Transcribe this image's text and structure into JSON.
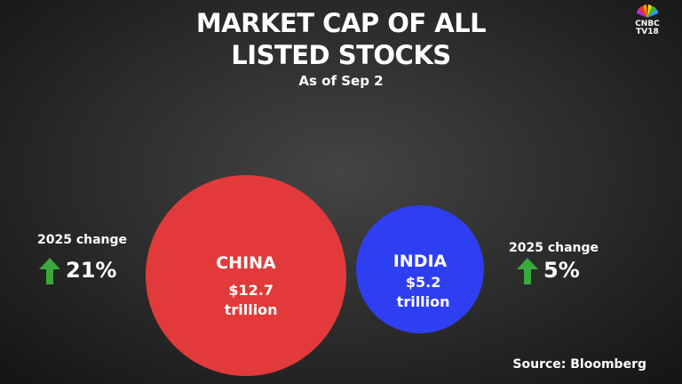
{
  "chart_data": {
    "type": "bubble",
    "title": "MARKET CAP OF ALL LISTED STOCKS",
    "subtitle": "As of Sep 2",
    "categories": [
      "CHINA",
      "INDIA"
    ],
    "values": [
      12.7,
      5.2
    ],
    "value_labels": [
      "$12.7 trillion",
      "$5.2 trillion"
    ],
    "colors": [
      "#e23a3a",
      "#2e3ff2"
    ],
    "change_label": "2025 change",
    "changes": [
      21,
      5
    ],
    "change_labels": [
      "21%",
      "5%"
    ],
    "change_color": "#3aa83a",
    "source": "Source: Bloomberg",
    "logo": [
      "CNBC",
      "TV18"
    ]
  }
}
